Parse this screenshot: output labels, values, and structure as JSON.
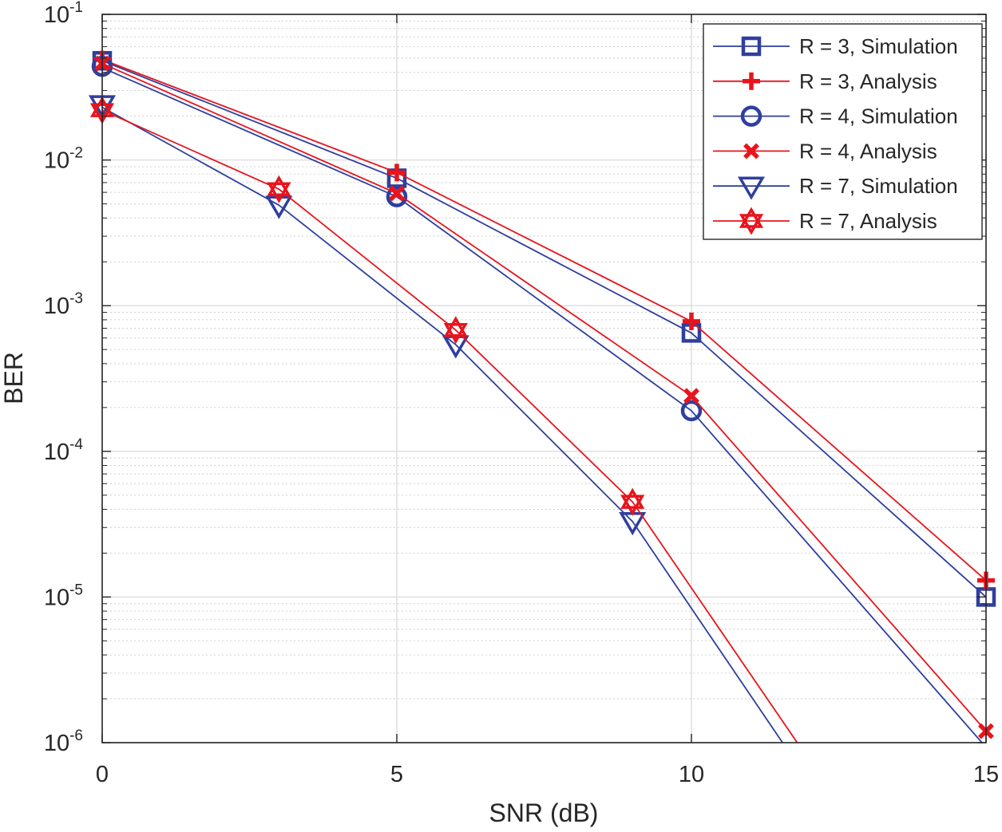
{
  "chart_data": {
    "type": "line",
    "title": "",
    "xlabel": "SNR (dB)",
    "ylabel": "BER",
    "xlim": [
      0,
      15
    ],
    "ylim": [
      1e-06,
      0.1
    ],
    "yscale": "log",
    "x_ticks": [
      0,
      5,
      10,
      15
    ],
    "y_ticks": [
      {
        "value": 0.1,
        "base": "10",
        "exp": "-1"
      },
      {
        "value": 0.01,
        "base": "10",
        "exp": "-2"
      },
      {
        "value": 0.001,
        "base": "10",
        "exp": "-3"
      },
      {
        "value": 0.0001,
        "base": "10",
        "exp": "-4"
      },
      {
        "value": 1e-05,
        "base": "10",
        "exp": "-5"
      },
      {
        "value": 1e-06,
        "base": "10",
        "exp": "-6"
      }
    ],
    "grid": true,
    "minor_grid": true,
    "legend_position": "top-right",
    "series": [
      {
        "name": "R = 3, Simulation",
        "color": "#2E3F9E",
        "marker": "square",
        "line": [
          [
            0,
            0.048
          ],
          [
            5,
            0.0075
          ],
          [
            10,
            0.00065
          ],
          [
            15,
            1e-05
          ]
        ],
        "marker_points": [
          [
            0,
            0.048
          ],
          [
            5,
            0.0075
          ],
          [
            10,
            0.00065
          ],
          [
            15,
            1e-05
          ]
        ]
      },
      {
        "name": "R = 3, Analysis",
        "color": "#E8141C",
        "marker": "plus",
        "line": [
          [
            0,
            0.049
          ],
          [
            5,
            0.0082
          ],
          [
            10,
            0.00078
          ],
          [
            15,
            1.3e-05
          ]
        ],
        "marker_points": [
          [
            0,
            0.049
          ],
          [
            5,
            0.0082
          ],
          [
            10,
            0.00078
          ],
          [
            15,
            1.3e-05
          ]
        ]
      },
      {
        "name": "R = 4, Simulation",
        "color": "#2E3F9E",
        "marker": "circle",
        "line": [
          [
            0,
            0.043
          ],
          [
            5,
            0.0056
          ],
          [
            10,
            0.00019
          ],
          [
            15,
            9.3e-07
          ]
        ],
        "marker_points": [
          [
            0,
            0.044
          ],
          [
            5,
            0.0056
          ],
          [
            10,
            0.00019
          ]
        ]
      },
      {
        "name": "R = 4, Analysis",
        "color": "#E8141C",
        "marker": "x",
        "line": [
          [
            0,
            0.046
          ],
          [
            5,
            0.0059
          ],
          [
            10,
            0.00024
          ],
          [
            15,
            1.2e-06
          ]
        ],
        "marker_points": [
          [
            0,
            0.046
          ],
          [
            5,
            0.0059
          ],
          [
            10,
            0.00024
          ],
          [
            15,
            1.2e-06
          ]
        ]
      },
      {
        "name": "R = 7, Simulation",
        "color": "#2E3F9E",
        "marker": "triangle-down",
        "line": [
          [
            0,
            0.023
          ],
          [
            3,
            0.0049
          ],
          [
            6,
            0.00054
          ],
          [
            9,
            3.3e-05
          ],
          [
            11.6,
            9.3e-07
          ]
        ],
        "marker_points": [
          [
            0,
            0.024
          ],
          [
            3,
            0.0049
          ],
          [
            6,
            0.00054
          ],
          [
            9,
            3.3e-05
          ]
        ]
      },
      {
        "name": "R = 7, Analysis",
        "color": "#E8141C",
        "marker": "hexagram",
        "line": [
          [
            0,
            0.022
          ],
          [
            3,
            0.0063
          ],
          [
            6,
            0.00068
          ],
          [
            9,
            4.5e-05
          ],
          [
            11.85,
            9.3e-07
          ]
        ],
        "marker_points": [
          [
            0,
            0.022
          ],
          [
            3,
            0.0063
          ],
          [
            6,
            0.00068
          ],
          [
            9,
            4.5e-05
          ]
        ]
      }
    ]
  }
}
